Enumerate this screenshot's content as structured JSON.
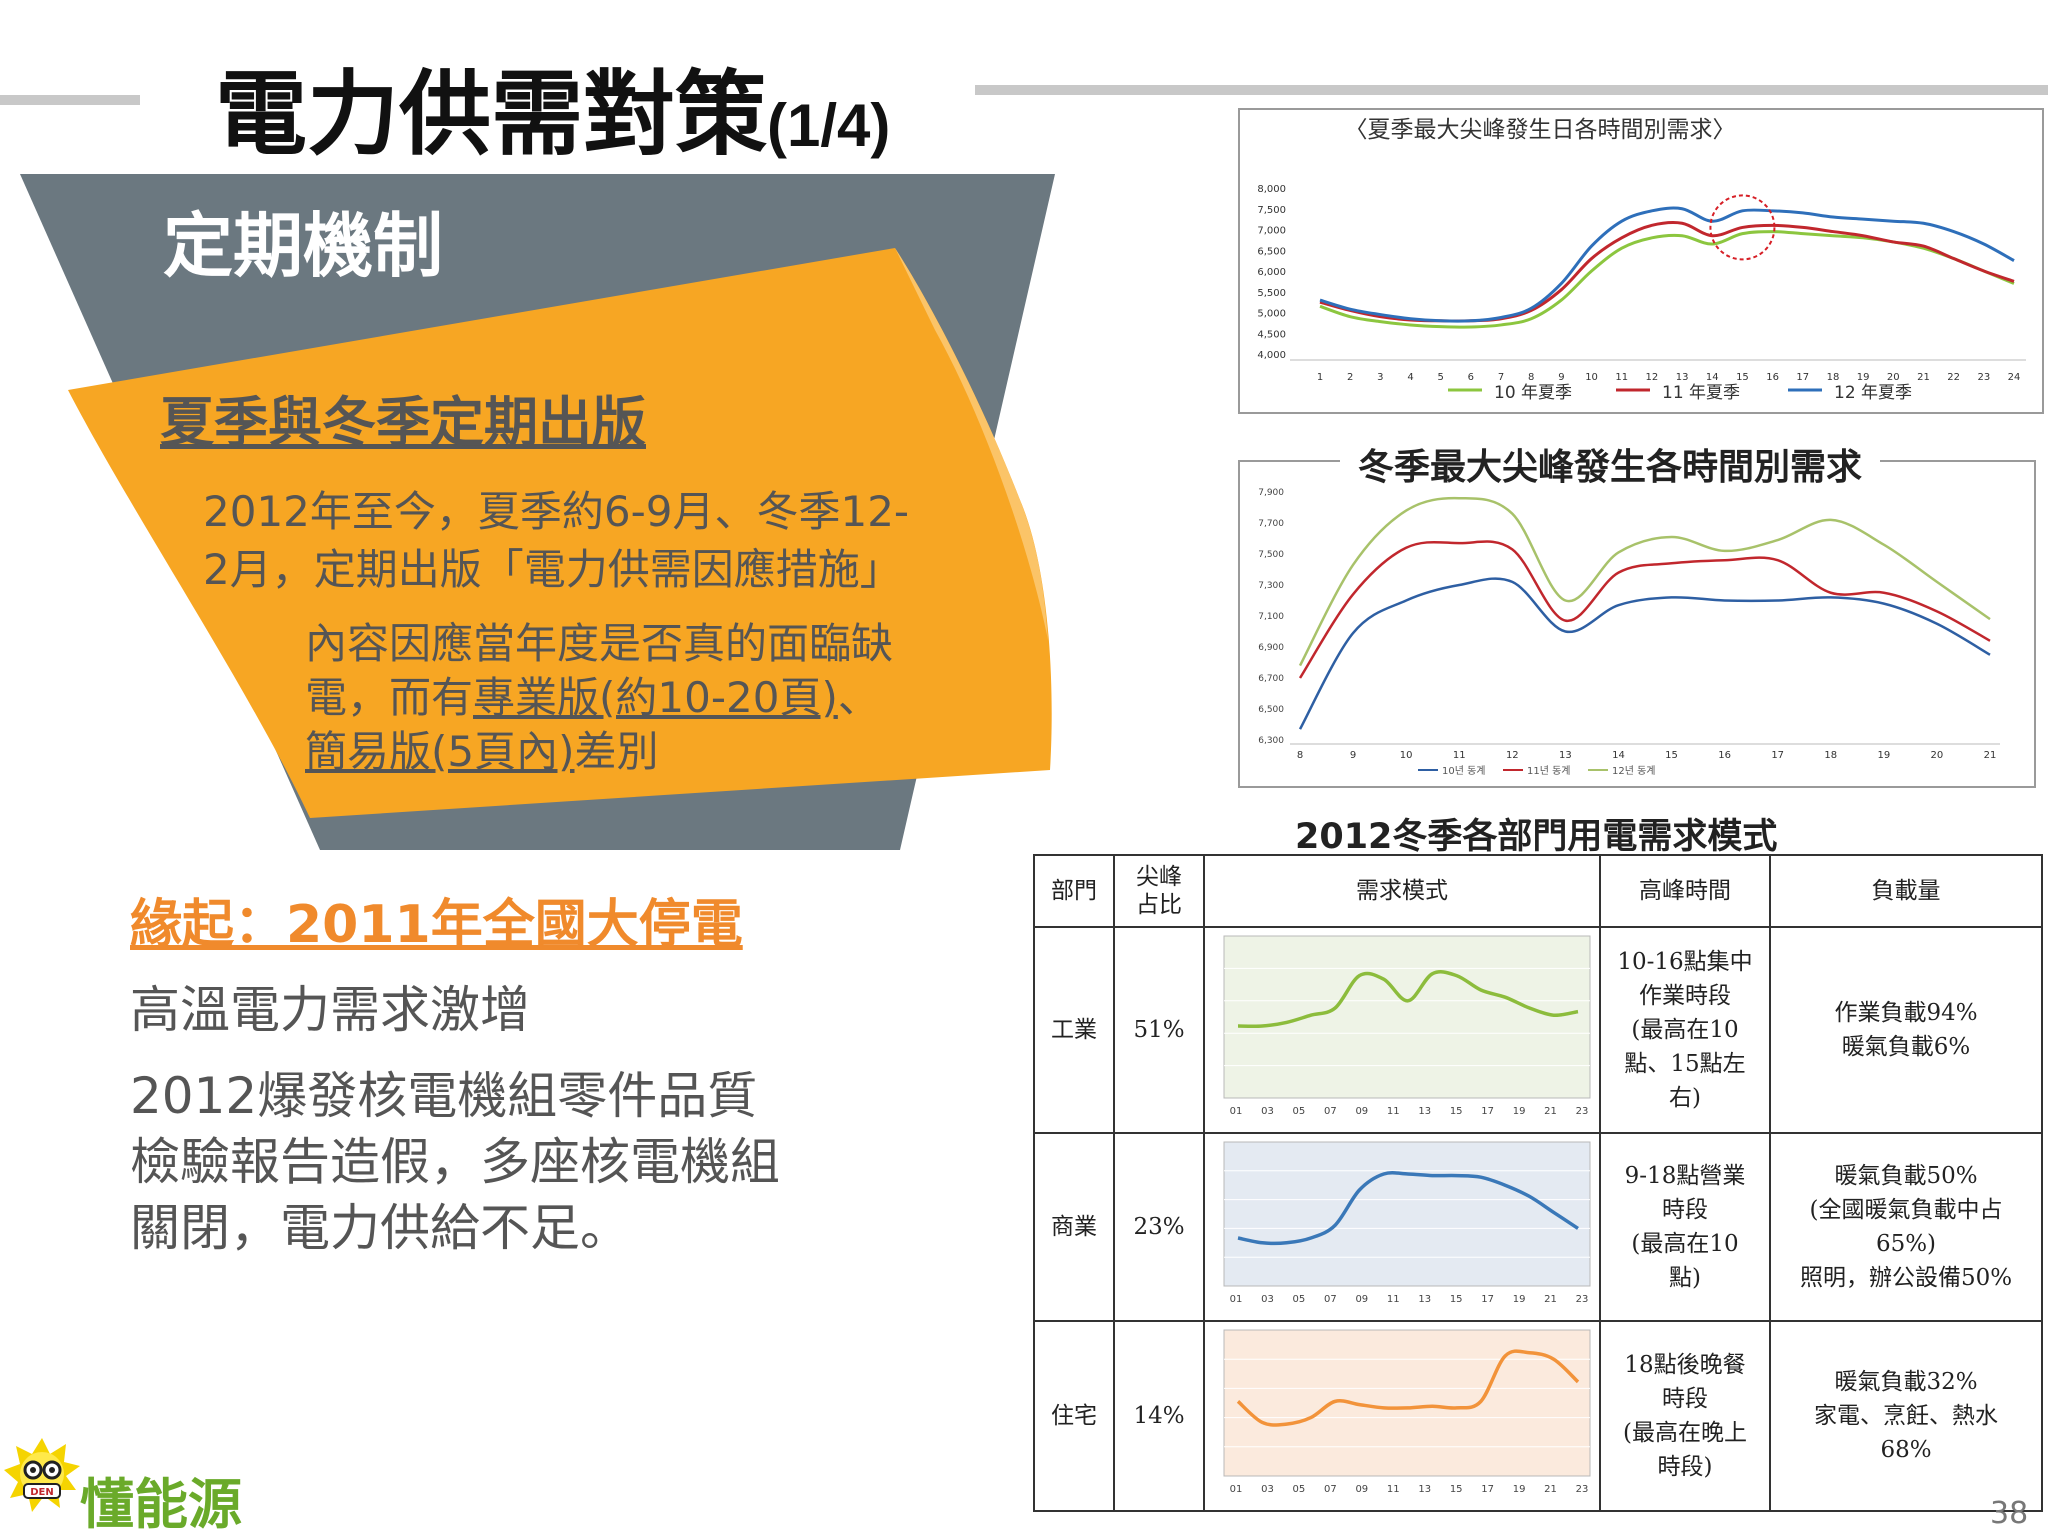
{
  "slide": {
    "title": "電力供需對策",
    "title_suffix": "(1/4)",
    "section_label": "定期機制",
    "page_number": "38"
  },
  "publication": {
    "heading": "夏季與冬季定期出版",
    "line1": "2012年至今，夏季約6-9月、冬季12-",
    "line2": "2月，定期出版「電力供需因應措施」",
    "detail_line1": "內容因應當年度是否真的面臨缺",
    "detail_line2_prefix": "電，而有",
    "detail_line2_link": "專業版(約10-20頁)",
    "detail_line2_suffix": "、",
    "detail_line3_link": "簡易版(5頁內)",
    "detail_line3_suffix": "差別"
  },
  "origin": {
    "heading": "緣起：2011年全國大停電",
    "point1": "高溫電力需求激增",
    "point2_line1": "2012爆發核電機組零件品質",
    "point2_line2": "檢驗報告造假，多座核電機組",
    "point2_line3": "關閉，電力供給不足。"
  },
  "logo": {
    "text": "懂能源",
    "badge": "DEN"
  },
  "colors": {
    "banner_gray": "#6b7880",
    "banner_orange": "#f7a623",
    "origin_orange": "#f08a2c",
    "summer_10": "#8cc63f",
    "summer_11": "#c1272d",
    "summer_12": "#2e6fba"
  },
  "chart_data": [
    {
      "type": "line",
      "title": "〈夏季最大尖峰發生日各時間別需求〉",
      "categories": [
        "1",
        "2",
        "3",
        "4",
        "5",
        "6",
        "7",
        "8",
        "9",
        "10",
        "11",
        "12",
        "13",
        "14",
        "15",
        "16",
        "17",
        "18",
        "19",
        "20",
        "21",
        "22",
        "23",
        "24"
      ],
      "y_ticks": [
        "8,000",
        "7,500",
        "7,000",
        "6,500",
        "6,000",
        "5,500",
        "5,000",
        "4,500",
        "4,000"
      ],
      "ylim": [
        4000,
        8000
      ],
      "series": [
        {
          "name": "10 年夏季",
          "color": "#8cc63f",
          "values": [
            5150,
            4900,
            4780,
            4700,
            4660,
            4650,
            4700,
            4850,
            5300,
            6000,
            6550,
            6800,
            6850,
            6650,
            6900,
            6950,
            6900,
            6850,
            6800,
            6700,
            6550,
            6300,
            6000,
            5700
          ]
        },
        {
          "name": "11 年夏季",
          "color": "#c1272d",
          "values": [
            5250,
            5050,
            4900,
            4820,
            4800,
            4800,
            4850,
            5050,
            5550,
            6300,
            6800,
            7100,
            7150,
            6850,
            7050,
            7100,
            7050,
            6950,
            6850,
            6700,
            6600,
            6300,
            6000,
            5750
          ]
        },
        {
          "name": "12 年夏季",
          "color": "#2e6fba",
          "values": [
            5300,
            5080,
            4950,
            4850,
            4800,
            4800,
            4880,
            5100,
            5700,
            6600,
            7200,
            7450,
            7500,
            7200,
            7450,
            7450,
            7400,
            7300,
            7250,
            7200,
            7150,
            6950,
            6650,
            6250
          ]
        }
      ],
      "annotation": "peak-circle"
    },
    {
      "type": "line",
      "title": "冬季最大尖峰發生各時間別需求",
      "categories": [
        "8",
        "9",
        "10",
        "11",
        "12",
        "13",
        "14",
        "15",
        "16",
        "17",
        "18",
        "19",
        "20",
        "21"
      ],
      "y_ticks": [
        "7,900",
        "7,700",
        "7,500",
        "7,300",
        "7,100",
        "6,900",
        "6,700",
        "6,500",
        "6,300"
      ],
      "ylim": [
        6300,
        7900
      ],
      "legend": [
        "10년 동계",
        "11년 동계",
        "12년 동계"
      ],
      "series": [
        {
          "color": "#2e5fa3",
          "values": [
            6370,
            6990,
            7200,
            7300,
            7320,
            7000,
            7170,
            7220,
            7200,
            7200,
            7220,
            7180,
            7050,
            6850
          ]
        },
        {
          "color": "#c1272d",
          "values": [
            6700,
            7240,
            7540,
            7570,
            7530,
            7070,
            7380,
            7440,
            7460,
            7460,
            7250,
            7250,
            7130,
            6940
          ]
        },
        {
          "color": "#a8c26a",
          "values": [
            6780,
            7430,
            7780,
            7860,
            7760,
            7200,
            7510,
            7610,
            7520,
            7590,
            7720,
            7560,
            7320,
            7080
          ]
        }
      ]
    },
    {
      "type": "table",
      "title": "2012冬季各部門用電需求模式",
      "columns": [
        "部門",
        "尖峰\n占比",
        "需求模式",
        "高峰時間",
        "負載量"
      ],
      "mini_axis": [
        "01",
        "03",
        "05",
        "07",
        "09",
        "11",
        "13",
        "15",
        "17",
        "19",
        "21",
        "23"
      ],
      "rows": [
        {
          "sector": "工業",
          "share": "51%",
          "peak_time": [
            "10-16點集中",
            "作業時段",
            "(最高在10",
            "點、15點左",
            "右)"
          ],
          "load": [
            "作業負載94%",
            "暖氣負載6%"
          ],
          "curve_color": "#8cbc3c",
          "bg": "#eef3e6",
          "curve": [
            4,
            4,
            4.2,
            4.6,
            5,
            6.8,
            6.6,
            5.4,
            6.9,
            6.8,
            6,
            5.6,
            5,
            4.6,
            4.8
          ]
        },
        {
          "sector": "商業",
          "share": "23%",
          "peak_time": [
            "9-18點營業",
            "時段",
            "(最高在10",
            "點)"
          ],
          "load": [
            "暖氣負載50%",
            "(全國暖氣負載中占",
            "65%)",
            "照明，辦公設備50%"
          ],
          "curve_color": "#3a78b8",
          "bg": "#e4eaf2",
          "curve": [
            3,
            2.7,
            2.7,
            3,
            3.8,
            6,
            7,
            7,
            6.9,
            6.9,
            6.8,
            6.3,
            5.6,
            4.6,
            3.6
          ]
        },
        {
          "sector": "住宅",
          "share": "14%",
          "peak_time": [
            "18點後晚餐",
            "時段",
            "(最高在晚上",
            "時段)"
          ],
          "load": [
            "暖氣負載32%",
            "家電、烹飪、熱水",
            "68%"
          ],
          "curve_color": "#f2933a",
          "bg": "#fbeadd",
          "curve": [
            4.6,
            3.3,
            3.2,
            3.6,
            4.6,
            4.4,
            4.2,
            4.2,
            4.3,
            4.2,
            4.6,
            7.4,
            7.6,
            7.2,
            5.8
          ]
        }
      ]
    }
  ]
}
